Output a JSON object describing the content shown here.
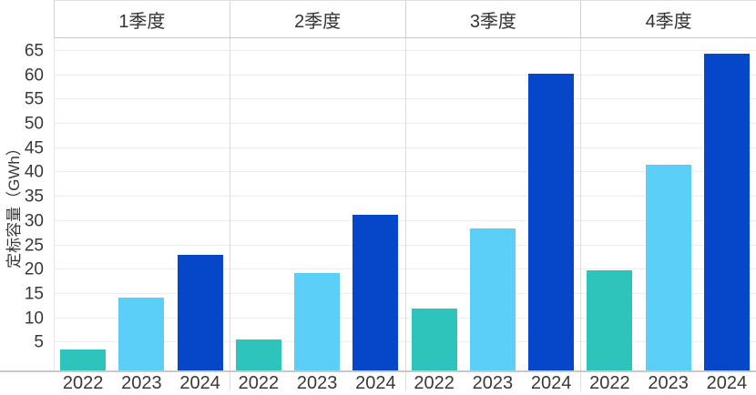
{
  "chart_data": {
    "type": "bar",
    "title": "",
    "ylabel": "定标容量（GWh）",
    "panels": [
      "1季度",
      "2季度",
      "3季度",
      "4季度"
    ],
    "categories": [
      "2022",
      "2023",
      "2024"
    ],
    "series": [
      {
        "name": "1季度",
        "values": [
          3.5,
          14.2,
          23.1
        ]
      },
      {
        "name": "2季度",
        "values": [
          5.6,
          19.3,
          31.2
        ]
      },
      {
        "name": "3季度",
        "values": [
          11.9,
          28.4,
          60.3
        ]
      },
      {
        "name": "4季度",
        "values": [
          19.8,
          41.6,
          64.4
        ]
      }
    ],
    "bar_colors": {
      "2022": "#2EC4BB",
      "2023": "#5CCFF8",
      "2024": "#0646C8"
    },
    "yticks": [
      5,
      10,
      15,
      20,
      25,
      30,
      35,
      40,
      45,
      50,
      55,
      60,
      65
    ],
    "ylim": [
      0,
      68
    ],
    "grid": "horizontal",
    "legend": "none",
    "text_color": "#383838",
    "gridline_color": "#ededed",
    "axis_line_color": "#c9c9c9"
  }
}
